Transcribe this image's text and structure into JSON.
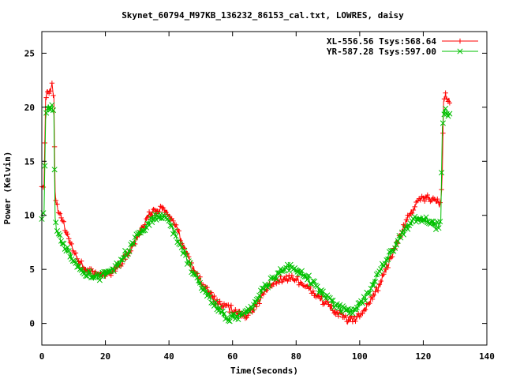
{
  "chart_data": {
    "type": "line",
    "title": "Skynet_60794_M97KB_136232_86153_cal.txt, LOWRES, daisy",
    "xlabel": "Time(Seconds)",
    "ylabel": "Power (Kelvin)",
    "xlim": [
      0,
      140
    ],
    "ylim": [
      -2,
      27
    ],
    "x_ticks": [
      0,
      20,
      40,
      60,
      80,
      100,
      120,
      140
    ],
    "y_ticks": [
      0,
      5,
      10,
      15,
      20,
      25
    ],
    "grid": false,
    "legend_position": "top-right",
    "series": [
      {
        "name": "XL-556.56 Tsys:568.64",
        "color": "#ff0000",
        "marker": "plus",
        "points": [
          [
            0,
            13.0
          ],
          [
            0.7,
            12.5
          ],
          [
            1.2,
            21.0
          ],
          [
            1.8,
            21.6
          ],
          [
            2.5,
            21.4
          ],
          [
            3.2,
            21.9
          ],
          [
            3.8,
            21.0
          ],
          [
            4.2,
            12.2
          ],
          [
            4.6,
            11.0
          ],
          [
            5.5,
            10.3
          ],
          [
            6.5,
            9.6
          ],
          [
            7.5,
            8.5
          ],
          [
            8.5,
            7.6
          ],
          [
            10,
            6.6
          ],
          [
            12,
            5.6
          ],
          [
            14,
            4.9
          ],
          [
            16,
            4.7
          ],
          [
            18,
            4.5
          ],
          [
            20,
            4.6
          ],
          [
            22,
            4.8
          ],
          [
            24,
            5.3
          ],
          [
            26,
            6.0
          ],
          [
            28,
            6.9
          ],
          [
            30,
            8.0
          ],
          [
            32,
            9.2
          ],
          [
            34,
            10.1
          ],
          [
            36,
            10.5
          ],
          [
            38,
            10.6
          ],
          [
            40,
            10.1
          ],
          [
            42,
            9.0
          ],
          [
            44,
            7.6
          ],
          [
            46,
            6.2
          ],
          [
            48,
            4.9
          ],
          [
            50,
            3.9
          ],
          [
            52,
            3.0
          ],
          [
            54,
            2.3
          ],
          [
            56,
            1.8
          ],
          [
            58,
            1.5
          ],
          [
            60,
            1.3
          ],
          [
            62,
            1.0
          ],
          [
            64,
            0.7
          ],
          [
            66,
            1.2
          ],
          [
            68,
            2.0
          ],
          [
            70,
            2.8
          ],
          [
            72,
            3.5
          ],
          [
            74,
            3.9
          ],
          [
            76,
            4.1
          ],
          [
            78,
            4.2
          ],
          [
            80,
            4.1
          ],
          [
            82,
            3.7
          ],
          [
            84,
            3.2
          ],
          [
            86,
            2.7
          ],
          [
            88,
            2.2
          ],
          [
            90,
            1.7
          ],
          [
            92,
            1.2
          ],
          [
            94,
            0.8
          ],
          [
            96,
            0.3
          ],
          [
            98,
            0.3
          ],
          [
            100,
            0.8
          ],
          [
            102,
            1.5
          ],
          [
            104,
            2.4
          ],
          [
            106,
            3.4
          ],
          [
            108,
            4.8
          ],
          [
            110,
            6.2
          ],
          [
            112,
            7.6
          ],
          [
            114,
            9.0
          ],
          [
            116,
            10.2
          ],
          [
            118,
            11.2
          ],
          [
            120,
            11.6
          ],
          [
            122,
            11.6
          ],
          [
            124,
            11.3
          ],
          [
            125.5,
            11.0
          ],
          [
            126,
            14.0
          ],
          [
            126.4,
            20.8
          ],
          [
            127,
            21.0
          ],
          [
            127.6,
            20.8
          ],
          [
            128.3,
            20.4
          ]
        ]
      },
      {
        "name": "YR-587.28 Tsys:597.00",
        "color": "#00c000",
        "marker": "cross",
        "points": [
          [
            0,
            10.0
          ],
          [
            0.7,
            10.3
          ],
          [
            1.2,
            19.0
          ],
          [
            1.8,
            20.2
          ],
          [
            2.5,
            20.0
          ],
          [
            3.2,
            20.2
          ],
          [
            3.8,
            19.3
          ],
          [
            4.2,
            9.8
          ],
          [
            4.6,
            8.8
          ],
          [
            5.5,
            8.0
          ],
          [
            6.5,
            7.3
          ],
          [
            7.5,
            7.0
          ],
          [
            8.5,
            6.5
          ],
          [
            10,
            5.9
          ],
          [
            12,
            5.1
          ],
          [
            14,
            4.6
          ],
          [
            16,
            4.4
          ],
          [
            18,
            4.3
          ],
          [
            20,
            4.5
          ],
          [
            22,
            4.9
          ],
          [
            24,
            5.5
          ],
          [
            26,
            6.3
          ],
          [
            28,
            7.1
          ],
          [
            30,
            8.0
          ],
          [
            32,
            8.8
          ],
          [
            34,
            9.5
          ],
          [
            36,
            9.9
          ],
          [
            38,
            9.8
          ],
          [
            40,
            9.3
          ],
          [
            42,
            8.3
          ],
          [
            44,
            7.0
          ],
          [
            46,
            5.7
          ],
          [
            48,
            4.5
          ],
          [
            50,
            3.5
          ],
          [
            52,
            2.6
          ],
          [
            54,
            1.9
          ],
          [
            56,
            1.2
          ],
          [
            58,
            0.6
          ],
          [
            60,
            0.5
          ],
          [
            62,
            0.7
          ],
          [
            64,
            0.9
          ],
          [
            66,
            1.5
          ],
          [
            68,
            2.4
          ],
          [
            70,
            3.2
          ],
          [
            72,
            3.9
          ],
          [
            74,
            4.5
          ],
          [
            76,
            4.9
          ],
          [
            78,
            5.2
          ],
          [
            80,
            5.0
          ],
          [
            82,
            4.7
          ],
          [
            84,
            4.1
          ],
          [
            86,
            3.5
          ],
          [
            88,
            2.9
          ],
          [
            90,
            2.3
          ],
          [
            92,
            1.8
          ],
          [
            94,
            1.4
          ],
          [
            96,
            1.1
          ],
          [
            98,
            1.2
          ],
          [
            100,
            1.7
          ],
          [
            102,
            2.5
          ],
          [
            104,
            3.5
          ],
          [
            106,
            4.6
          ],
          [
            108,
            5.7
          ],
          [
            110,
            6.7
          ],
          [
            112,
            7.7
          ],
          [
            114,
            8.6
          ],
          [
            116,
            9.3
          ],
          [
            118,
            9.7
          ],
          [
            120,
            9.7
          ],
          [
            122,
            9.3
          ],
          [
            124,
            9.0
          ],
          [
            125.5,
            9.2
          ],
          [
            126,
            18.0
          ],
          [
            126.4,
            19.5
          ],
          [
            127,
            19.6
          ],
          [
            127.6,
            19.5
          ],
          [
            128.3,
            19.4
          ]
        ]
      }
    ]
  }
}
